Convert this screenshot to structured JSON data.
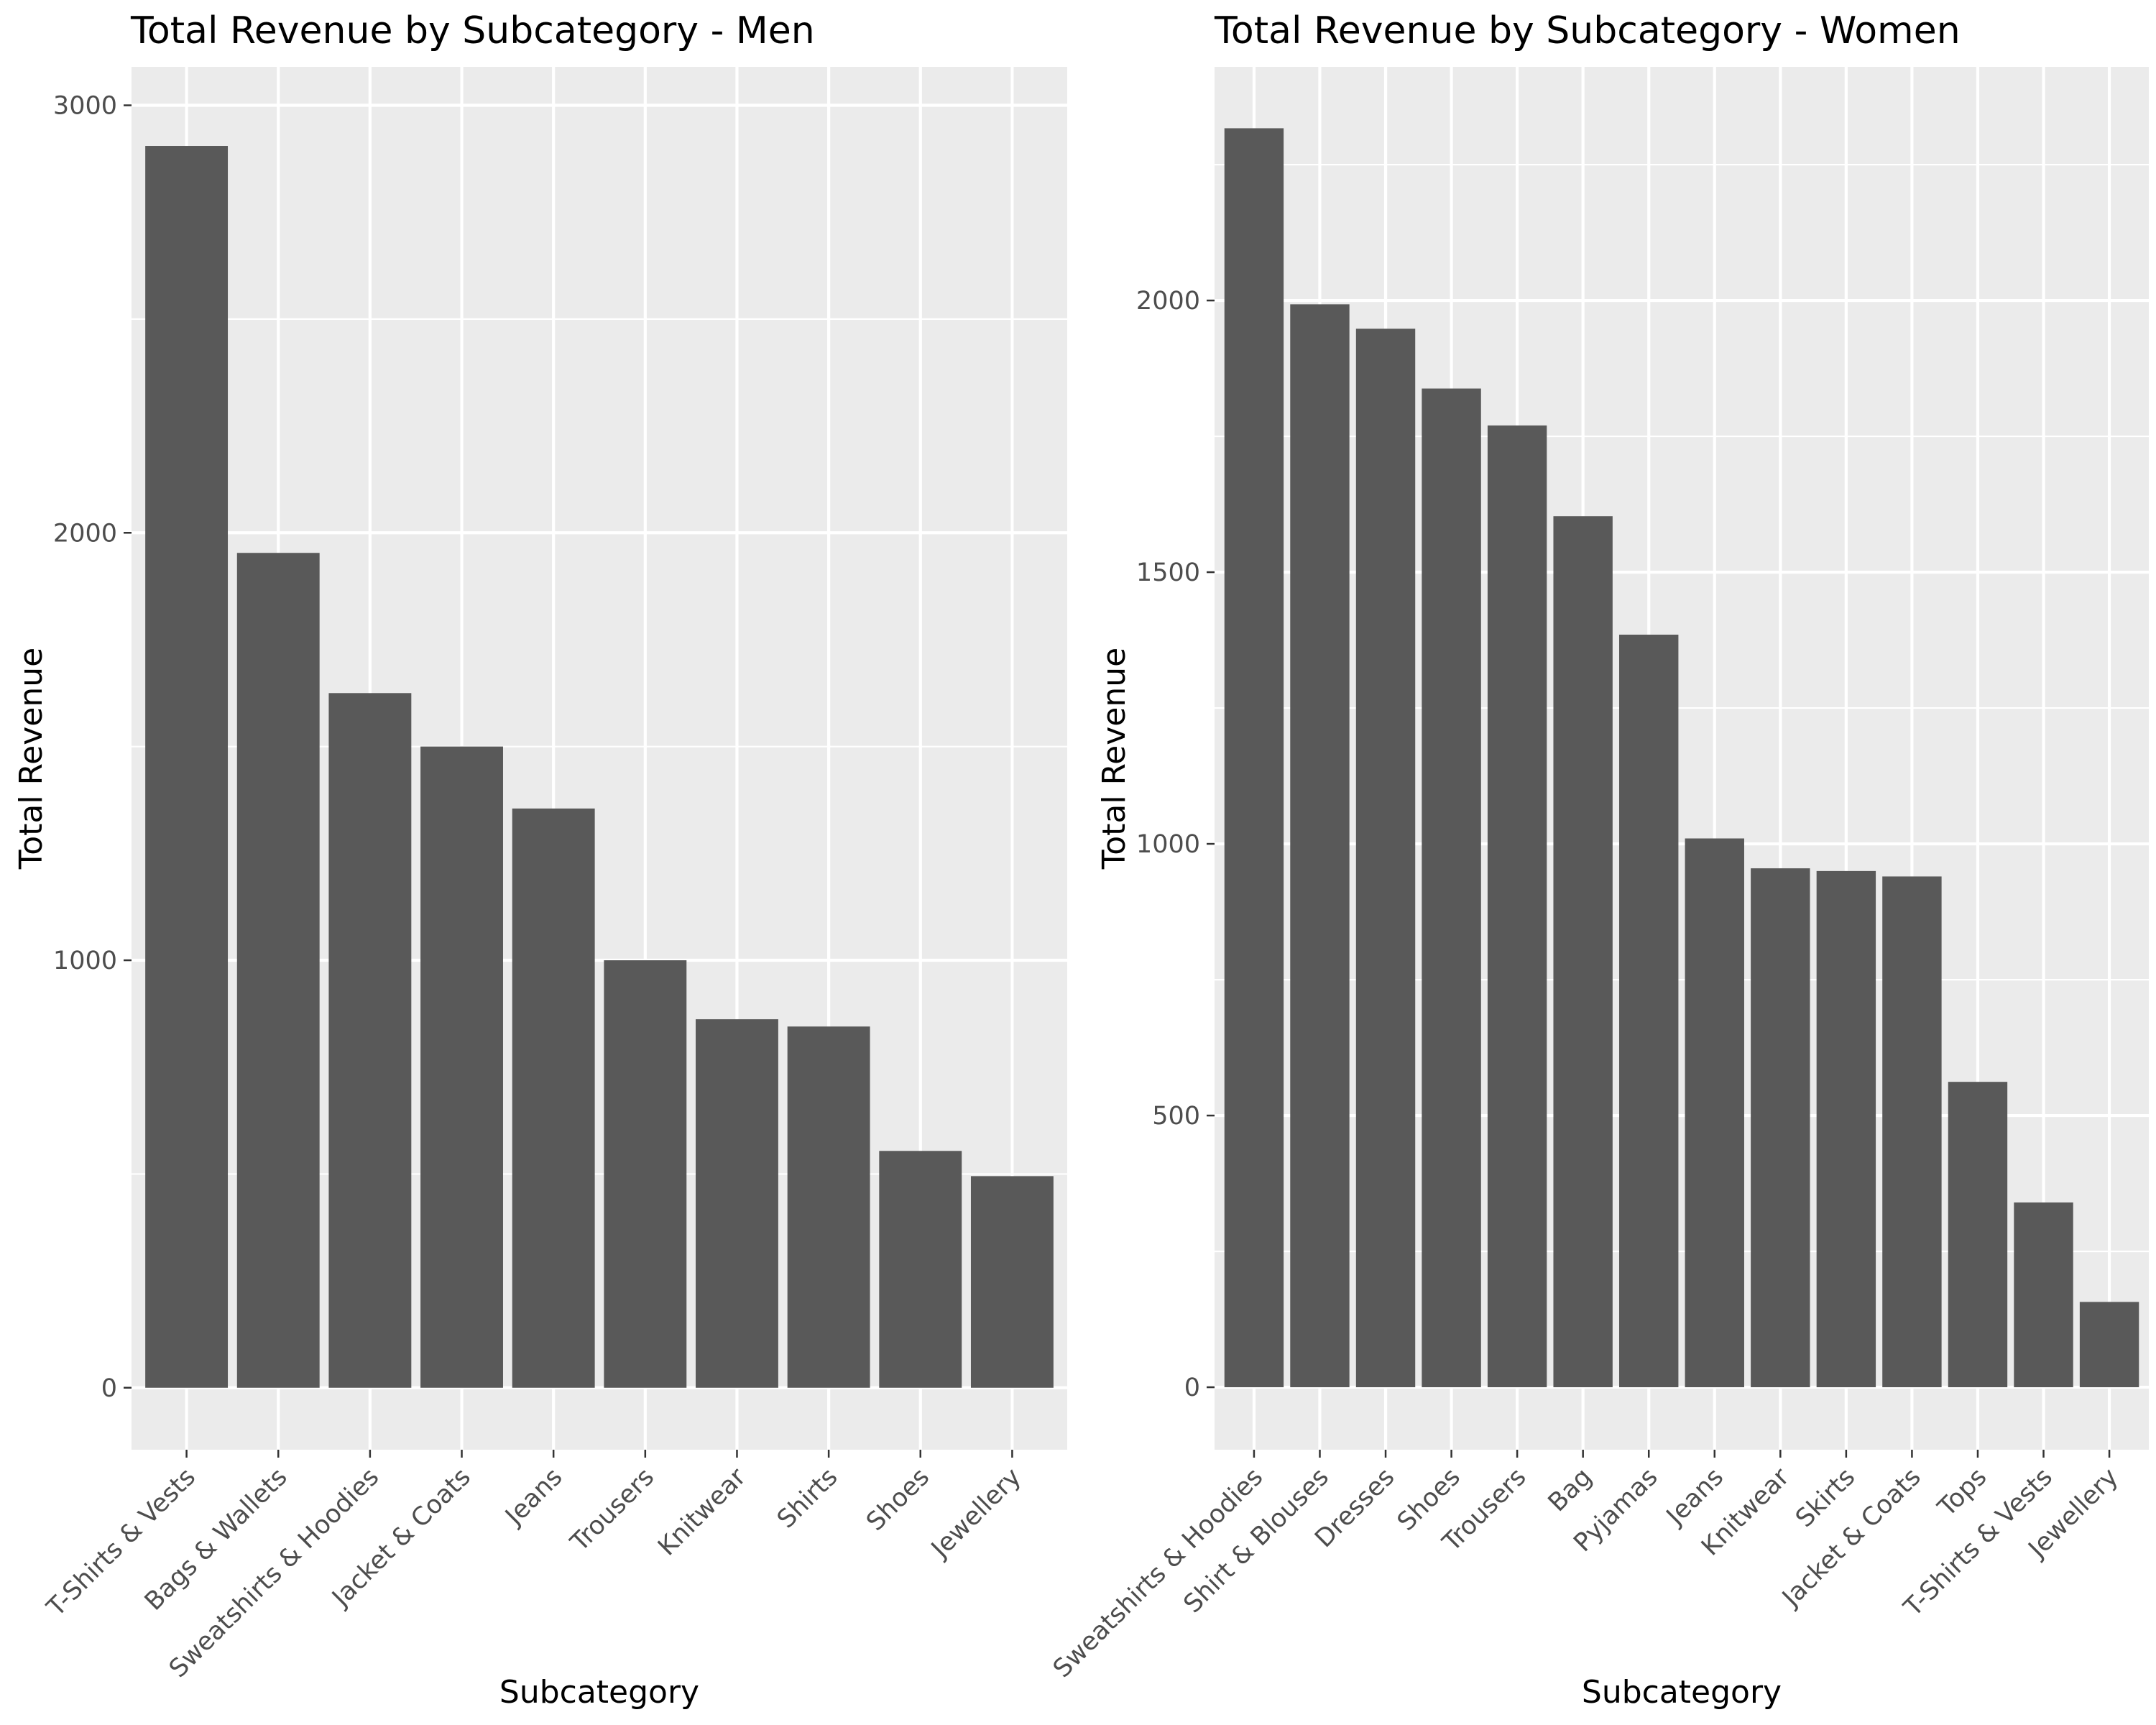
{
  "chart_data": [
    {
      "type": "bar",
      "title": "Total Revenue by Subcategory - Men",
      "xlabel": "Subcategory",
      "ylabel": "Total Revenue",
      "categories": [
        "T-Shirts & Vests",
        "Bags & Wallets",
        "Sweatshirts & Hoodies",
        "Jacket & Coats",
        "Jeans",
        "Trousers",
        "Knitwear",
        "Shirts",
        "Shoes",
        "Jewellery"
      ],
      "values": [
        2905,
        1953,
        1625,
        1500,
        1355,
        1000,
        862,
        845,
        554,
        495
      ],
      "yticks": [
        0,
        1000,
        2000,
        3000
      ],
      "ylim": [
        -145,
        3090
      ],
      "grid": true,
      "bar_color": "#595959",
      "panel_color": "#ebebeb"
    },
    {
      "type": "bar",
      "title": "Total Revenue by Subcategory - Women",
      "xlabel": "Subcategory",
      "ylabel": "Total Revenue",
      "categories": [
        "Sweatshirts & Hoodies",
        "Shirt & Blouses",
        "Dresses",
        "Shoes",
        "Trousers",
        "Bag",
        "Pyjamas",
        "Jeans",
        "Knitwear",
        "Skirts",
        "Jacket & Coats",
        "Tops",
        "T-Shirts & Vests",
        "Jewellery"
      ],
      "values": [
        2317,
        1993,
        1948,
        1838,
        1770,
        1603,
        1385,
        1010,
        955,
        950,
        940,
        562,
        340,
        157
      ],
      "yticks": [
        0,
        500,
        1000,
        1500,
        2000
      ],
      "ylim": [
        -115,
        2430
      ],
      "grid": true,
      "bar_color": "#595959",
      "panel_color": "#ebebeb"
    }
  ]
}
